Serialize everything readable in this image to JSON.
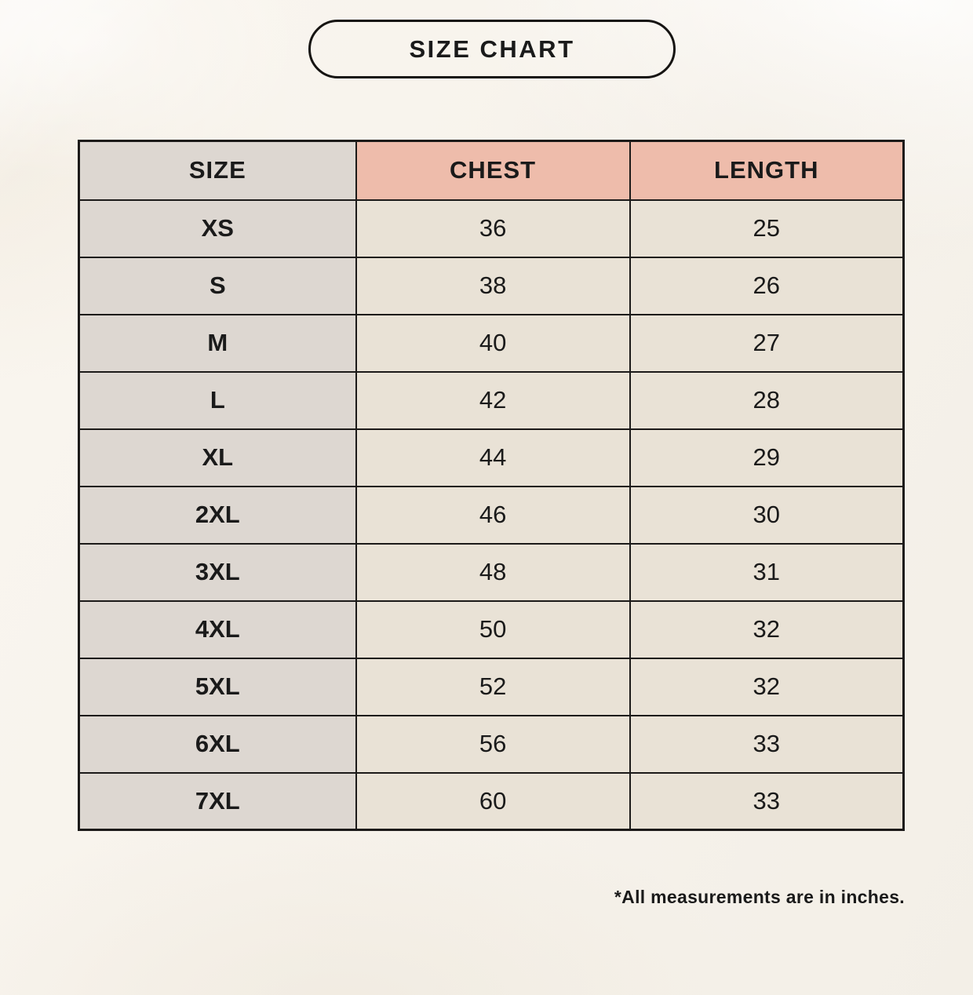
{
  "header": {
    "title": "SIZE CHART"
  },
  "chart_data": {
    "type": "table",
    "title": "SIZE CHART",
    "columns": [
      "SIZE",
      "CHEST",
      "LENGTH"
    ],
    "rows": [
      [
        "XS",
        "36",
        "25"
      ],
      [
        "S",
        "38",
        "26"
      ],
      [
        "M",
        "40",
        "27"
      ],
      [
        "L",
        "42",
        "28"
      ],
      [
        "XL",
        "44",
        "29"
      ],
      [
        "2XL",
        "46",
        "30"
      ],
      [
        "3XL",
        "48",
        "31"
      ],
      [
        "4XL",
        "50",
        "32"
      ],
      [
        "5XL",
        "52",
        "32"
      ],
      [
        "6XL",
        "56",
        "33"
      ],
      [
        "7XL",
        "60",
        "33"
      ]
    ],
    "note": "*All measurements are in inches.",
    "units": "inches",
    "layout_hints": {
      "header_accent_columns": [
        "CHEST",
        "LENGTH"
      ],
      "size_column_shaded": true,
      "grid": true
    }
  },
  "footer": {
    "note": "*All measurements are in inches."
  },
  "colors": {
    "background": "#f7f3ec",
    "size_column_bg": "#ddd7d1",
    "header_accent_bg": "#eebcab",
    "data_cell_bg": "#e9e2d6",
    "border": "#1c1a19",
    "text": "#1a1a1a"
  }
}
